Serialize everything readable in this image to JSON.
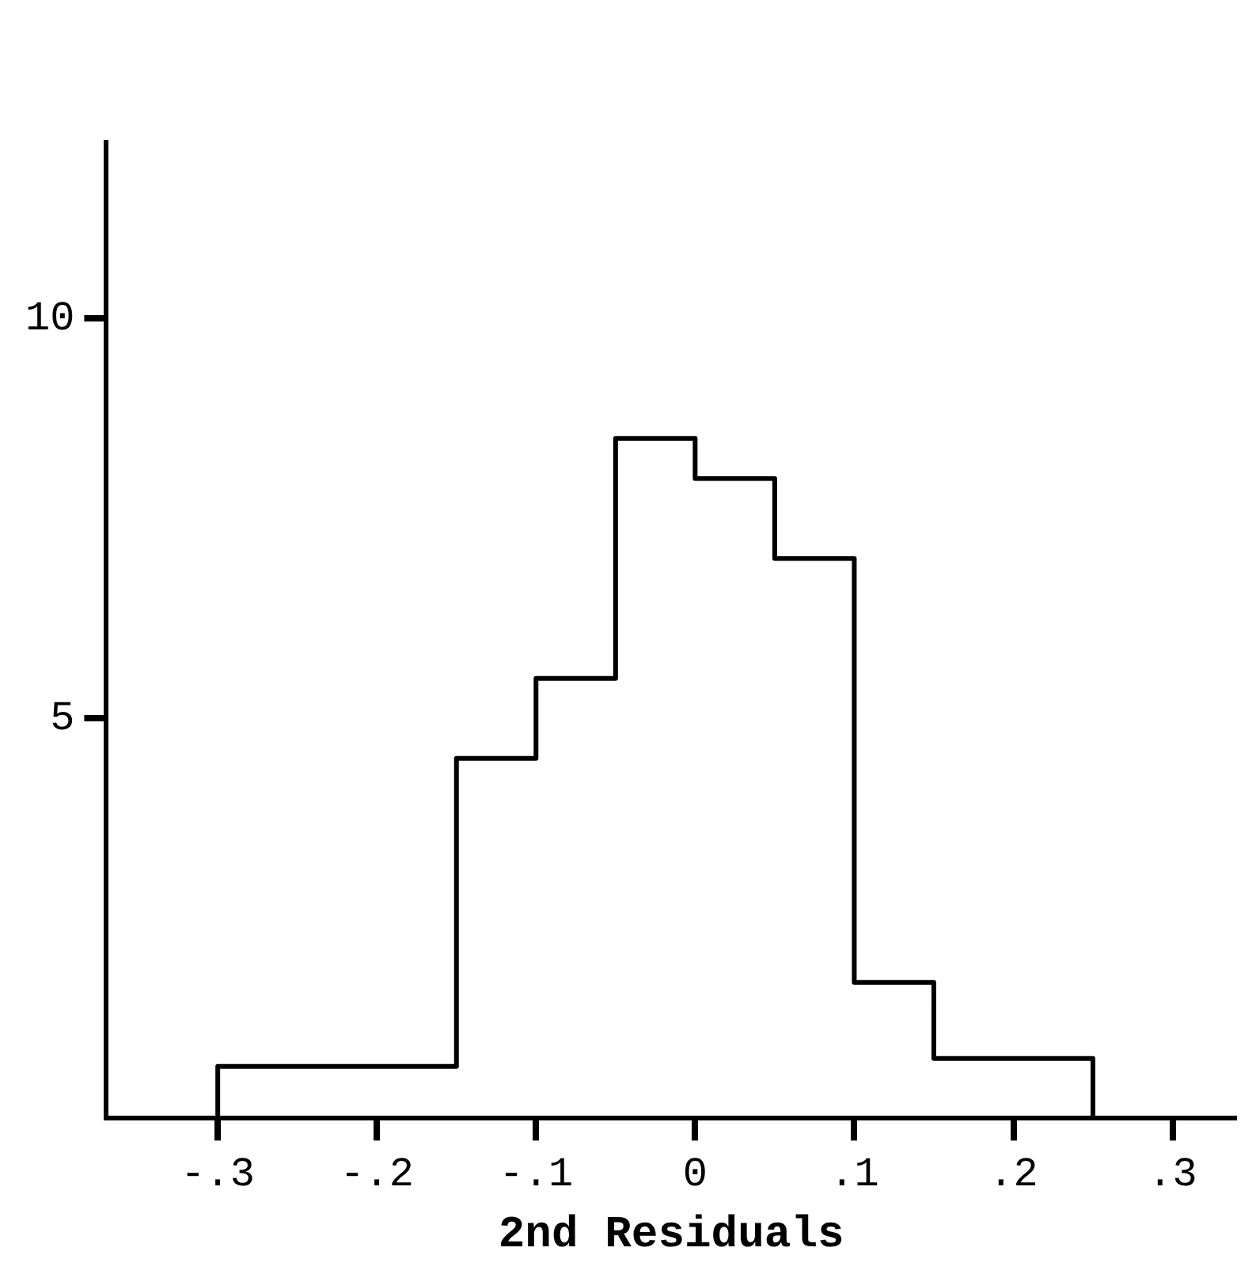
{
  "chart_data": {
    "type": "histogram",
    "xlabel": "2nd Residuals",
    "color": "#000000",
    "bins": [
      -0.3,
      -0.15,
      -0.1,
      -0.05,
      0,
      0.05,
      0.1,
      0.15,
      0.25
    ],
    "values": [
      0.65,
      4.5,
      5.5,
      8.5,
      8,
      7,
      1.7,
      0.75
    ],
    "xlim": [
      -0.37,
      0.34
    ],
    "xticks": [
      {
        "value": -0.3,
        "label": "-.3"
      },
      {
        "value": -0.2,
        "label": "-.2"
      },
      {
        "value": -0.1,
        "label": "-.1"
      },
      0,
      {
        "value": 0.1,
        "label": ".1"
      },
      {
        "value": 0.2,
        "label": ".2"
      },
      {
        "value": 0.3,
        "label": ".3"
      }
    ],
    "ylim": [
      0,
      12.2
    ],
    "yticks": [
      5,
      10
    ],
    "grid": false
  }
}
